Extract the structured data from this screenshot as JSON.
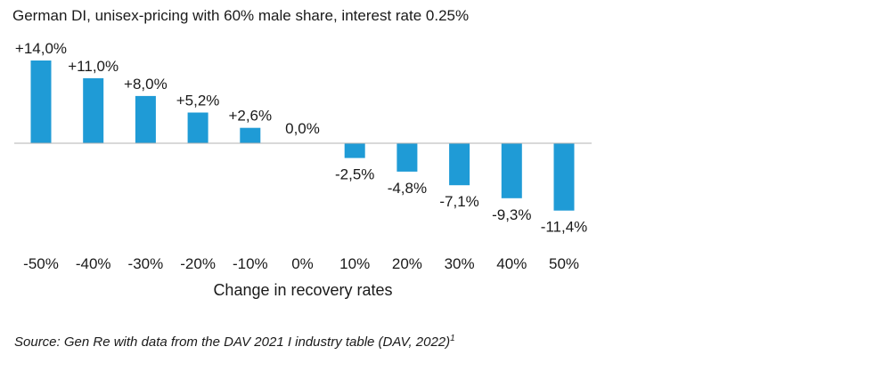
{
  "chart_data": {
    "type": "bar",
    "title": "German DI, unisex-pricing with 60% male share, interest rate 0.25%",
    "categories": [
      "-50%",
      "-40%",
      "-30%",
      "-20%",
      "-10%",
      "0%",
      "10%",
      "20%",
      "30%",
      "40%",
      "50%"
    ],
    "values": [
      14.0,
      11.0,
      8.0,
      5.2,
      2.6,
      0.0,
      -2.5,
      -4.8,
      -7.1,
      -9.3,
      -11.4
    ],
    "data_labels": [
      "+14,0%",
      "+11,0%",
      "+8,0%",
      "+5,2%",
      "+2,6%",
      "0,0%",
      "-2,5%",
      "-4,8%",
      "-7,1%",
      "-9,3%",
      "-11,4%"
    ],
    "xlabel": "Change in recovery rates",
    "ylabel": "",
    "ylim": [
      -11.4,
      14.0
    ],
    "grid": false,
    "bar_color": "#1f9bd6",
    "axis_color": "#b3b3b3"
  },
  "source": {
    "text": "Source: Gen Re with data from the DAV 2021 I industry table (DAV, 2022)",
    "footnote": "1"
  }
}
